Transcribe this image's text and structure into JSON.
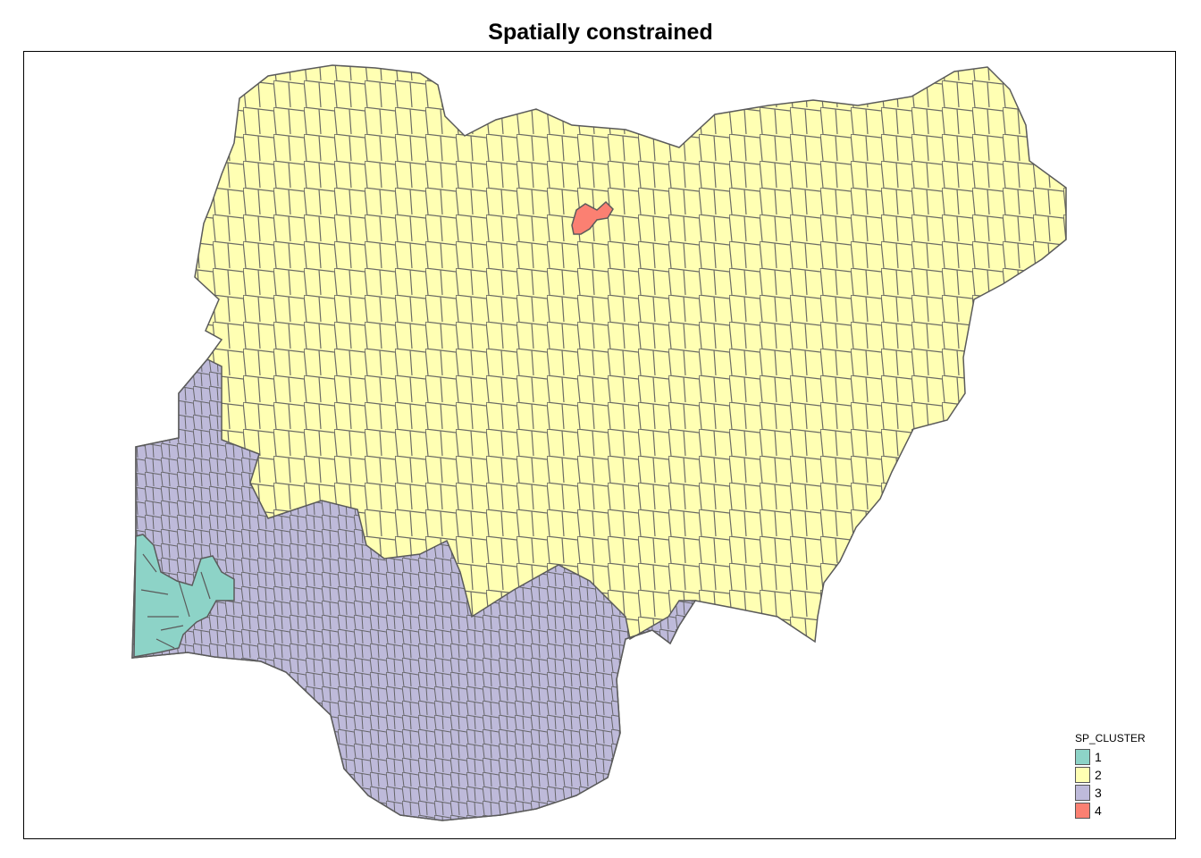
{
  "title": "Spatially constrained",
  "legend": {
    "title": "SP_CLUSTER",
    "items": [
      {
        "label": "1",
        "color": "#8DD3C7"
      },
      {
        "label": "2",
        "color": "#FFFFB3"
      },
      {
        "label": "3",
        "color": "#BEBADA"
      },
      {
        "label": "4",
        "color": "#FB8072"
      }
    ]
  },
  "colors": {
    "border": "#5a5a5a",
    "background": "#ffffff"
  }
}
